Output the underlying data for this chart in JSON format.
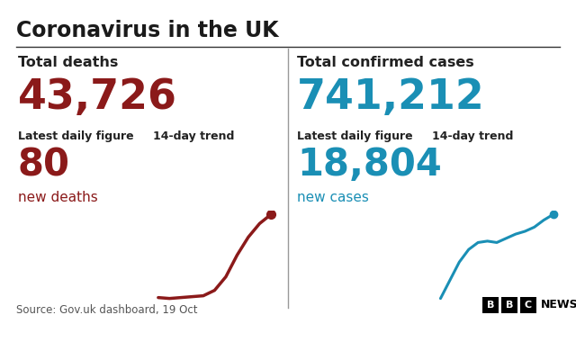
{
  "title": "Coronavirus in the UK",
  "bg_color": "#ffffff",
  "title_color": "#1a1a1a",
  "label_color": "#222222",
  "source_color": "#555555",
  "left": {
    "label": "Total deaths",
    "total": "43,726",
    "total_color": "#8b1a1a",
    "daily_label": "Latest daily figure",
    "trend_label": "14-day trend",
    "daily_value": "80",
    "daily_unit": "new deaths",
    "value_color": "#8b1a1a",
    "trend_color": "#8b1a1a",
    "trend_x": [
      0,
      1,
      2,
      3,
      4,
      5,
      6,
      7,
      8,
      9,
      10
    ],
    "trend_y": [
      0.05,
      0.04,
      0.05,
      0.06,
      0.07,
      0.13,
      0.28,
      0.52,
      0.72,
      0.87,
      0.97
    ]
  },
  "right": {
    "label": "Total confirmed cases",
    "total": "741,212",
    "total_color": "#1a8fb5",
    "daily_label": "Latest daily figure",
    "trend_label": "14-day trend",
    "daily_value": "18,804",
    "daily_unit": "new cases",
    "value_color": "#1a8fb5",
    "trend_color": "#1a8fb5",
    "trend_x": [
      0,
      1,
      2,
      3,
      4,
      5,
      6,
      7,
      8,
      9,
      10,
      11,
      12
    ],
    "trend_y": [
      0.22,
      0.35,
      0.48,
      0.57,
      0.62,
      0.63,
      0.62,
      0.65,
      0.68,
      0.7,
      0.73,
      0.78,
      0.82
    ]
  },
  "source_text": "Source: Gov.uk dashboard, 19 Oct"
}
